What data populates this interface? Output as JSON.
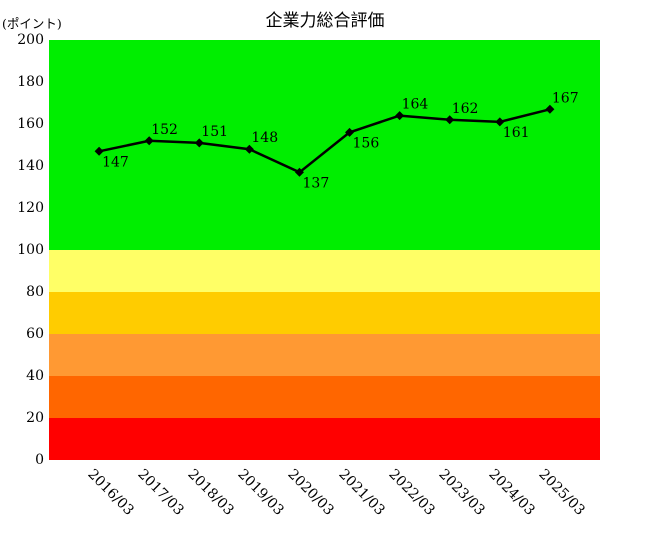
{
  "chart": {
    "title": "企業力総合評価",
    "unit_label": "(ポイント)"
  },
  "chart_data": {
    "type": "line",
    "title": "企業力総合評価",
    "ylabel": "(ポイント)",
    "x": [
      "2016/03",
      "2017/03",
      "2018/03",
      "2019/03",
      "2020/03",
      "2021/03",
      "2022/03",
      "2023/03",
      "2024/03",
      "2025/03"
    ],
    "series": [
      {
        "name": "企業力総合評価",
        "values": [
          147,
          152,
          151,
          148,
          137,
          156,
          164,
          162,
          161,
          167
        ]
      }
    ],
    "ylim": [
      0,
      200
    ],
    "yticks": [
      0,
      20,
      40,
      60,
      80,
      100,
      120,
      140,
      160,
      180,
      200
    ],
    "grid": false,
    "legend_position": "none",
    "line_color": "#000000",
    "marker": "diamond",
    "value_label_positions": [
      "below",
      "above",
      "above",
      "above",
      "below",
      "below",
      "above",
      "above",
      "below",
      "above"
    ],
    "x_label_rotation_deg": 45,
    "bands": [
      {
        "from": 100,
        "to": 200,
        "color": "#00ee00"
      },
      {
        "from": 80,
        "to": 100,
        "color": "#ffff66"
      },
      {
        "from": 60,
        "to": 80,
        "color": "#ffcc00"
      },
      {
        "from": 40,
        "to": 60,
        "color": "#ff9933"
      },
      {
        "from": 20,
        "to": 40,
        "color": "#ff6600"
      },
      {
        "from": 0,
        "to": 20,
        "color": "#ff0000"
      }
    ]
  }
}
